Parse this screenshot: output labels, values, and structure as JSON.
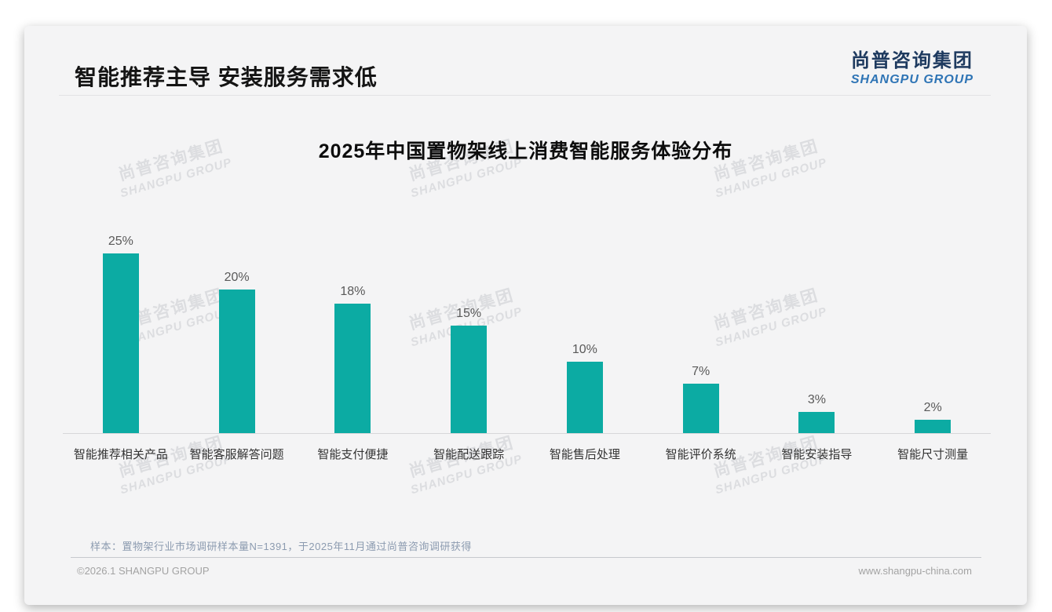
{
  "page": {
    "slide_title": "智能推荐主导 安装服务需求低",
    "logo": {
      "cn": "尚普咨询集团",
      "en": "SHANGPU GROUP"
    },
    "watermark": {
      "line1": "尚普咨询集团",
      "line2": "SHANGPU GROUP"
    },
    "note": "样本：置物架行业市场调研样本量N=1391，于2025年11月通过尚普咨询调研获得",
    "footer": {
      "left": "©2026.1 SHANGPU GROUP",
      "right": "www.shangpu-china.com"
    },
    "colors": {
      "logo_cn": "#1e3a5f",
      "logo_en": "#2e74b5",
      "card_bg": "#f4f4f5"
    }
  },
  "chart_data": {
    "type": "bar",
    "title": "2025年中国置物架线上消费智能服务体验分布",
    "categories": [
      "智能推荐相关产品",
      "智能客服解答问题",
      "智能支付便捷",
      "智能配送跟踪",
      "智能售后处理",
      "智能评价系统",
      "智能安装指导",
      "智能尺寸测量"
    ],
    "values": [
      25,
      20,
      18,
      15,
      10,
      7,
      3,
      2
    ],
    "value_labels": [
      "25%",
      "20%",
      "18%",
      "15%",
      "10%",
      "7%",
      "3%",
      "2%"
    ],
    "unit": "%",
    "bar_color": "#0cab a3",
    "xlabel": "",
    "ylabel": "",
    "ylim": [
      0,
      27
    ],
    "grid": false,
    "legend": null
  }
}
